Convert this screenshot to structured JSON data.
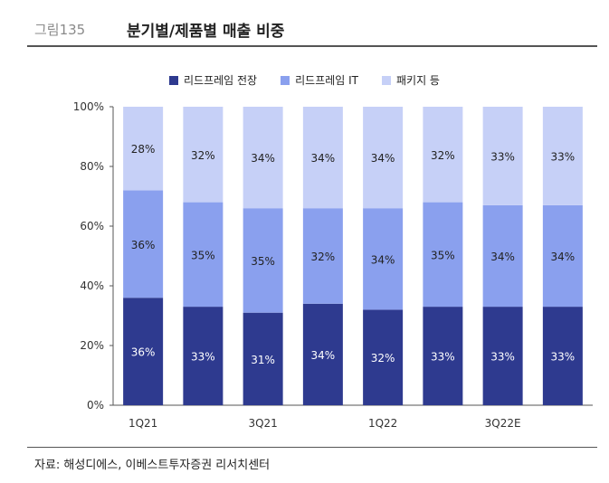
{
  "figure_label": "그림135",
  "figure_title": "분기별/제품별 매출 비중",
  "source": "자료: 해성디에스, 이베스트투자증권 리서치센터",
  "chart_data": {
    "type": "bar",
    "stacked": true,
    "categories": [
      "1Q21",
      "2Q21",
      "3Q21",
      "4Q21",
      "1Q22",
      "2Q22",
      "3Q22E",
      "4Q22E"
    ],
    "x_tick_labels": [
      "1Q21",
      "",
      "3Q21",
      "",
      "1Q22",
      "",
      "3Q22E",
      ""
    ],
    "y_ticks": [
      "0%",
      "20%",
      "40%",
      "60%",
      "80%",
      "100%"
    ],
    "ylim": [
      0,
      100
    ],
    "series": [
      {
        "name": "리드프레임 전장",
        "color": "#2e3a8f",
        "values": [
          36,
          33,
          31,
          34,
          32,
          33,
          33,
          33
        ]
      },
      {
        "name": "리드프레임 IT",
        "color": "#8aa0ee",
        "values": [
          36,
          35,
          35,
          32,
          34,
          35,
          34,
          34
        ]
      },
      {
        "name": "패키지 등",
        "color": "#c6d0f7",
        "values": [
          28,
          32,
          34,
          34,
          34,
          32,
          33,
          33
        ]
      }
    ],
    "legend_position": "top-center",
    "grid": false
  }
}
